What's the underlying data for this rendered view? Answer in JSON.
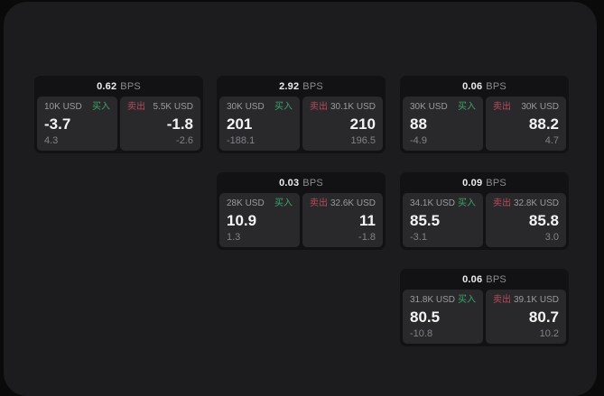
{
  "labels": {
    "bps_unit": "BPS",
    "buy": "买入",
    "sell": "卖出"
  },
  "colors": {
    "outer_bg": "#0a0a0a",
    "panel_bg": "#1c1c1e",
    "card_bg": "#121214",
    "pane_bg": "#29292c",
    "buy_green": "#3ea36a",
    "sell_red": "#b84a5e",
    "value_white": "#f4f4f4",
    "label_gray": "#9b9b9f"
  },
  "cards": [
    {
      "bps": "0.62",
      "col": 0,
      "row": 0,
      "buy": {
        "notional": "10K USD",
        "price": "-3.7",
        "change": "4.3"
      },
      "sell": {
        "notional": "5.5K USD",
        "price": "-1.8",
        "change": "-2.6"
      }
    },
    {
      "bps": "2.92",
      "col": 1,
      "row": 0,
      "buy": {
        "notional": "30K USD",
        "price": "201",
        "change": "-188.1"
      },
      "sell": {
        "notional": "30.1K USD",
        "price": "210",
        "change": "196.5"
      }
    },
    {
      "bps": "0.06",
      "col": 2,
      "row": 0,
      "buy": {
        "notional": "30K USD",
        "price": "88",
        "change": "-4.9"
      },
      "sell": {
        "notional": "30K USD",
        "price": "88.2",
        "change": "4.7"
      }
    },
    {
      "bps": "0.03",
      "col": 1,
      "row": 1,
      "buy": {
        "notional": "28K USD",
        "price": "10.9",
        "change": "1.3"
      },
      "sell": {
        "notional": "32.6K USD",
        "price": "11",
        "change": "-1.8"
      }
    },
    {
      "bps": "0.09",
      "col": 2,
      "row": 1,
      "buy": {
        "notional": "34.1K USD",
        "price": "85.5",
        "change": "-3.1"
      },
      "sell": {
        "notional": "32.8K USD",
        "price": "85.8",
        "change": "3.0"
      }
    },
    {
      "bps": "0.06",
      "col": 2,
      "row": 2,
      "buy": {
        "notional": "31.8K USD",
        "price": "80.5",
        "change": "-10.8"
      },
      "sell": {
        "notional": "39.1K USD",
        "price": "80.7",
        "change": "10.2"
      }
    }
  ]
}
